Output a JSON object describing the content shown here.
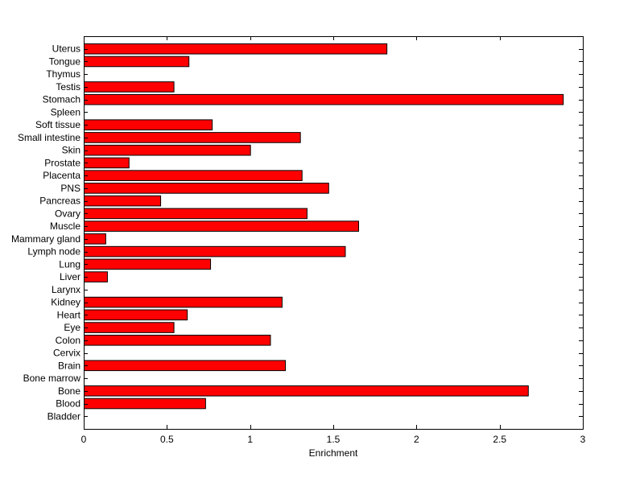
{
  "chart_data": {
    "type": "bar",
    "orientation": "horizontal",
    "title": "",
    "xlabel": "Enrichment",
    "ylabel": "",
    "xlim": [
      0,
      3
    ],
    "xticks": [
      "0",
      "0.5",
      "1",
      "1.5",
      "2",
      "2.5",
      "3"
    ],
    "grid": false,
    "legend": "none",
    "bar_color": "#ff0000",
    "edge_color": "#000000",
    "categories": [
      "Bladder",
      "Blood",
      "Bone",
      "Bone marrow",
      "Brain",
      "Cervix",
      "Colon",
      "Eye",
      "Heart",
      "Kidney",
      "Larynx",
      "Liver",
      "Lung",
      "Lymph node",
      "Mammary gland",
      "Muscle",
      "Ovary",
      "Pancreas",
      "PNS",
      "Placenta",
      "Prostate",
      "Skin",
      "Small intestine",
      "Soft tissue",
      "Spleen",
      "Stomach",
      "Testis",
      "Thymus",
      "Tongue",
      "Uterus"
    ],
    "values": [
      0,
      0.73,
      2.67,
      0,
      1.21,
      0,
      1.12,
      0.54,
      0.62,
      1.19,
      0,
      0.14,
      0.76,
      1.57,
      0.13,
      1.65,
      1.34,
      0.46,
      1.47,
      1.31,
      0.27,
      1.0,
      1.3,
      0.77,
      0,
      2.88,
      0.54,
      0,
      0.63,
      1.82
    ]
  }
}
